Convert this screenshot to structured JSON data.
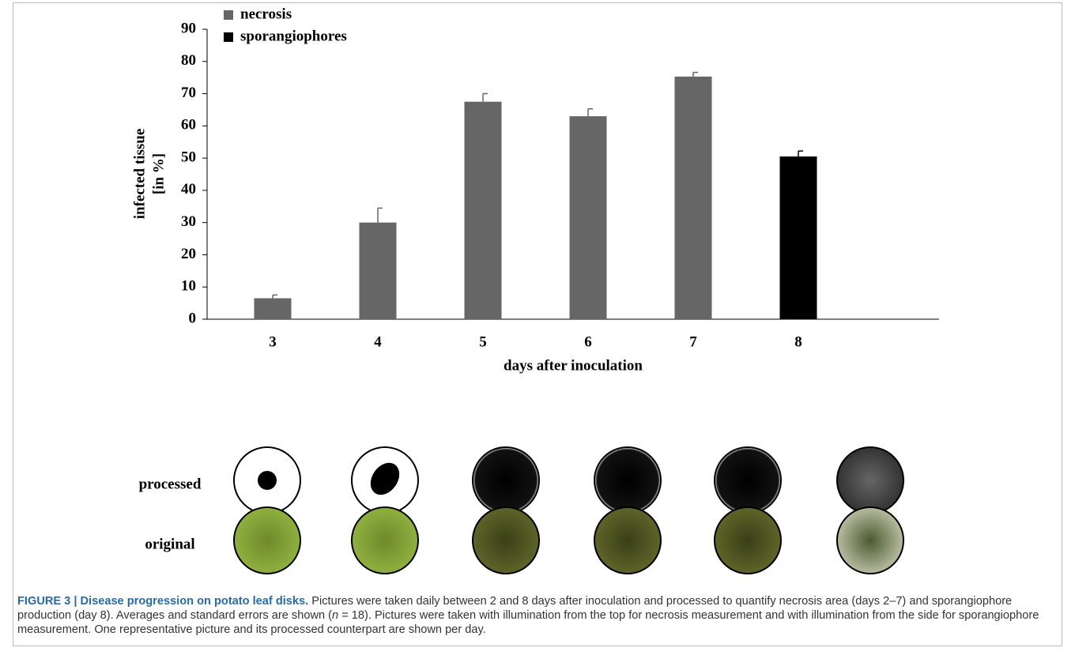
{
  "chart_data": {
    "type": "bar",
    "categories": [
      "3",
      "4",
      "5",
      "6",
      "7",
      "8"
    ],
    "series": [
      {
        "name": "necrosis",
        "color": "#666666",
        "values": [
          6.5,
          30,
          67.5,
          63,
          75.3,
          null
        ],
        "errors": [
          1,
          4.5,
          2.5,
          2.3,
          1.3,
          null
        ]
      },
      {
        "name": "sporangiophores",
        "color": "#000000",
        "values": [
          null,
          null,
          null,
          null,
          null,
          50.5
        ],
        "errors": [
          null,
          null,
          null,
          null,
          null,
          1.7
        ]
      }
    ],
    "ylim": [
      0,
      90
    ],
    "yticks": [
      0,
      10,
      20,
      30,
      40,
      50,
      60,
      70,
      80,
      90
    ],
    "ylabel": [
      "infected tissue",
      "[in %]"
    ],
    "xlabel": "days after inoculation",
    "legend": "upper left",
    "grid": false
  },
  "image_rows": [
    "processed",
    "original"
  ],
  "caption": {
    "title": "FIGURE 3 | Disease progression on potato leaf disks.",
    "text_1": " Pictures were taken daily between 2 and 8 days after inoculation and processed to quantify necrosis area (days 2–7) and sporangiophore production (day 8). Averages and standard errors are shown (",
    "italic": "n",
    "text_2": " = 18). Pictures were taken with illumination from the top for necrosis measurement and with illumination from the side for sporangiophore measurement. One representative picture and its processed counterpart are shown per day."
  }
}
